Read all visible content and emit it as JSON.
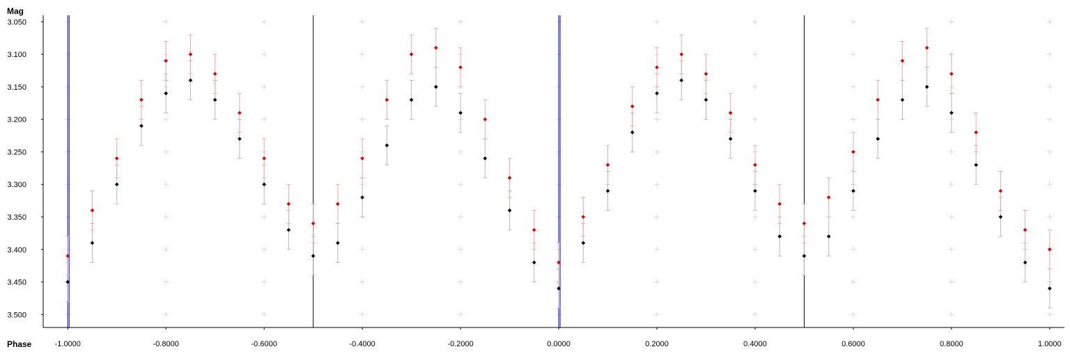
{
  "chart_data": {
    "type": "scatter",
    "xlabel": "Phase",
    "ylabel": "Mag",
    "xlim": [
      -1.05,
      1.03
    ],
    "ylim": [
      3.04,
      3.52
    ],
    "y_inverted": true,
    "x_ticks": [
      "-1.0000",
      "-0.8000",
      "-0.6000",
      "-0.4000",
      "-0.2000",
      "0.0000",
      "0.2000",
      "0.4000",
      "0.6000",
      "0.8000",
      "1.0000"
    ],
    "y_ticks": [
      "3.050",
      "3.100",
      "3.150",
      "3.200",
      "3.250",
      "3.300",
      "3.350",
      "3.400",
      "3.450",
      "3.500"
    ],
    "grid": "plus markers",
    "phase_markers": [
      {
        "phase": -1.0,
        "color": "#0000cc"
      },
      {
        "phase": -0.5,
        "color": "#000066"
      },
      {
        "phase": 0.0,
        "color": "#0000cc"
      },
      {
        "phase": 0.5,
        "color": "#000066"
      }
    ],
    "series": [
      {
        "color": "#000000",
        "error_bar_color": "#b8b8b8",
        "error": 0.03,
        "x": [
          -1.0,
          -0.95,
          -0.9,
          -0.85,
          -0.8,
          -0.75,
          -0.7,
          -0.65,
          -0.6,
          -0.55,
          -0.5,
          -0.45,
          -0.4,
          -0.35,
          -0.3,
          -0.25,
          -0.2,
          -0.15,
          -0.1,
          -0.05,
          0.0,
          0.05,
          0.1,
          0.15,
          0.2,
          0.25,
          0.3,
          0.35,
          0.4,
          0.45,
          0.5,
          0.55,
          0.6,
          0.65,
          0.7,
          0.75,
          0.8,
          0.85,
          0.9,
          0.95,
          1.0
        ],
        "y": [
          3.45,
          3.39,
          3.3,
          3.21,
          3.16,
          3.14,
          3.17,
          3.23,
          3.3,
          3.37,
          3.41,
          3.39,
          3.32,
          3.24,
          3.17,
          3.15,
          3.19,
          3.26,
          3.34,
          3.42,
          3.46,
          3.39,
          3.31,
          3.22,
          3.16,
          3.14,
          3.17,
          3.23,
          3.31,
          3.38,
          3.41,
          3.38,
          3.31,
          3.23,
          3.17,
          3.15,
          3.19,
          3.27,
          3.35,
          3.42,
          3.46
        ]
      },
      {
        "color": "#e00000",
        "error_bar_color": "#f0a8a8",
        "error": 0.03,
        "x": [
          -1.0,
          -0.95,
          -0.9,
          -0.85,
          -0.8,
          -0.75,
          -0.7,
          -0.65,
          -0.6,
          -0.55,
          -0.5,
          -0.45,
          -0.4,
          -0.35,
          -0.3,
          -0.25,
          -0.2,
          -0.15,
          -0.1,
          -0.05,
          0.0,
          0.05,
          0.1,
          0.15,
          0.2,
          0.25,
          0.3,
          0.35,
          0.4,
          0.45,
          0.5,
          0.55,
          0.6,
          0.65,
          0.7,
          0.75,
          0.8,
          0.85,
          0.9,
          0.95,
          1.0
        ],
        "y": [
          3.41,
          3.34,
          3.26,
          3.17,
          3.11,
          3.1,
          3.13,
          3.19,
          3.26,
          3.33,
          3.36,
          3.33,
          3.26,
          3.17,
          3.1,
          3.09,
          3.12,
          3.2,
          3.29,
          3.37,
          3.42,
          3.35,
          3.27,
          3.18,
          3.12,
          3.1,
          3.13,
          3.19,
          3.27,
          3.33,
          3.36,
          3.32,
          3.25,
          3.17,
          3.11,
          3.09,
          3.13,
          3.22,
          3.31,
          3.37,
          3.4
        ]
      }
    ]
  }
}
